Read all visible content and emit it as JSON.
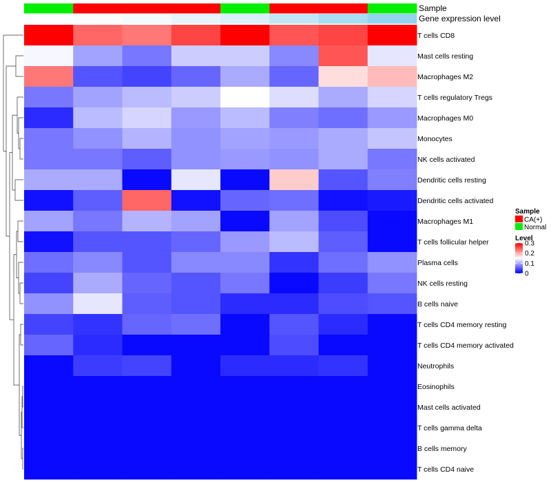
{
  "chart_data": {
    "type": "heatmap",
    "annotation_rows": [
      "Sample",
      "Gene expression level"
    ],
    "samples": [
      "Normal",
      "CA(+)",
      "CA(+)",
      "CA(+)",
      "Normal",
      "CA(+)",
      "CA(+)",
      "Normal"
    ],
    "gene_expression_level": [
      0.02,
      0.05,
      0.1,
      0.2,
      0.32,
      0.52,
      0.72,
      0.9
    ],
    "rows": [
      "T cells CD8",
      "Mast cells resting",
      "Macrophages M2",
      "T cells regulatory  Tregs",
      "Macrophages M0",
      "Monocytes",
      "NK cells activated",
      "Dendritic cells resting",
      "Dendritic cells activated",
      "Macrophages M1",
      "T cells follicular helper",
      "Plasma cells",
      "NK cells resting",
      "B cells naive",
      "T cells CD4 memory resting",
      "T cells CD4 memory activated",
      "Neutrophils",
      "Eosinophils",
      "Mast cells activated",
      "T cells gamma delta",
      "B cells memory",
      "T cells CD4 naive"
    ],
    "values": [
      [
        0.3,
        0.24,
        0.23,
        0.26,
        0.3,
        0.25,
        0.26,
        0.3
      ],
      [
        0.145,
        0.095,
        0.07,
        0.12,
        0.12,
        0.08,
        0.25,
        0.135
      ],
      [
        0.23,
        0.05,
        0.04,
        0.06,
        0.1,
        0.06,
        0.17,
        0.19
      ],
      [
        0.07,
        0.095,
        0.11,
        0.12,
        0.15,
        0.13,
        0.1,
        0.125
      ],
      [
        0.025,
        0.11,
        0.125,
        0.09,
        0.11,
        0.075,
        0.065,
        0.09
      ],
      [
        0.07,
        0.085,
        0.105,
        0.085,
        0.095,
        0.09,
        0.1,
        0.115
      ],
      [
        0.07,
        0.07,
        0.055,
        0.085,
        0.09,
        0.085,
        0.1,
        0.07
      ],
      [
        0.1,
        0.1,
        0.005,
        0.135,
        0.005,
        0.18,
        0.05,
        0.075
      ],
      [
        0.01,
        0.055,
        0.24,
        0.01,
        0.06,
        0.065,
        0.01,
        0.015
      ],
      [
        0.095,
        0.07,
        0.105,
        0.095,
        0.005,
        0.095,
        0.045,
        0.005
      ],
      [
        0.01,
        0.05,
        0.05,
        0.06,
        0.09,
        0.11,
        0.055,
        0.005
      ],
      [
        0.065,
        0.08,
        0.05,
        0.08,
        0.08,
        0.03,
        0.065,
        0.085
      ],
      [
        0.04,
        0.1,
        0.06,
        0.05,
        0.07,
        0.005,
        0.035,
        0.07
      ],
      [
        0.085,
        0.135,
        0.055,
        0.05,
        0.025,
        0.025,
        0.045,
        0.05
      ],
      [
        0.04,
        0.03,
        0.06,
        0.065,
        0.005,
        0.05,
        0.025,
        0.005
      ],
      [
        0.06,
        0.025,
        0.005,
        0.005,
        0.005,
        0.045,
        0.005,
        0.005
      ],
      [
        0.005,
        0.035,
        0.04,
        0.005,
        0.025,
        0.025,
        0.03,
        0.005
      ],
      [
        0.005,
        0.005,
        0.005,
        0.005,
        0.005,
        0.005,
        0.005,
        0.005
      ],
      [
        0.005,
        0.005,
        0.005,
        0.005,
        0.005,
        0.005,
        0.005,
        0.005
      ],
      [
        0.005,
        0.005,
        0.005,
        0.005,
        0.005,
        0.005,
        0.005,
        0.005
      ],
      [
        0.005,
        0.005,
        0.005,
        0.005,
        0.005,
        0.005,
        0.005,
        0.005
      ],
      [
        0.005,
        0.005,
        0.005,
        0.005,
        0.005,
        0.005,
        0.005,
        0.005
      ]
    ],
    "color_scale": {
      "min": 0,
      "max": 0.3,
      "colors": [
        "#0000ff",
        "#ffffff",
        "#ff0000"
      ],
      "ticks": [
        "0",
        "0.1",
        "0.2",
        "0.3"
      ]
    },
    "legend": {
      "placement": "right",
      "sample_title": "Sample",
      "sample_entries": [
        {
          "label": "CA(+)",
          "color": "#ff0000"
        },
        {
          "label": "Normal",
          "color": "#00ee00"
        }
      ],
      "level_title": "Level"
    },
    "sample_colors": {
      "CA(+)": "#ff0000",
      "Normal": "#00ee00"
    },
    "gene_expression_colors": [
      "#ffffff",
      "#87ceeb"
    ],
    "row_dendrogram": true,
    "grid": false
  }
}
